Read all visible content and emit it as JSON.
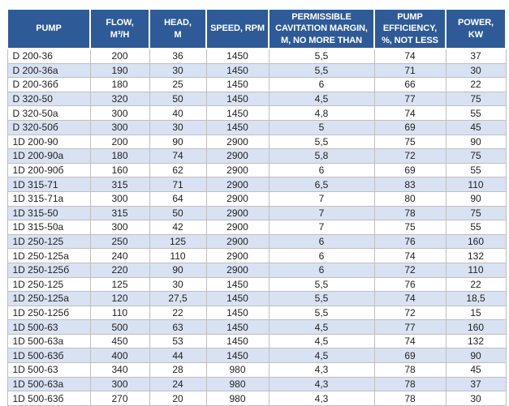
{
  "colors": {
    "header_bg": "#2E5B97",
    "header_text": "#FFFFFF",
    "row_alt_bg": "#D9E2F3",
    "grid_line": "#BFBFBF",
    "body_text": "#1F1F1F"
  },
  "chart_data": {
    "type": "table",
    "title": "",
    "columns": [
      "PUMP",
      "FLOW,\nM³/H",
      "HEAD,\nM",
      "SPEED, RPM",
      "PERMISSIBLE\nCAVITATION MARGIN,\nM, NO MORE THAN",
      "PUMP\nEFFICIENCY,\n%, NOT LESS",
      "POWER,\nKW"
    ],
    "rows": [
      [
        "D 200-36",
        "200",
        "36",
        "1450",
        "5,5",
        "74",
        "37"
      ],
      [
        "D 200-36a",
        "190",
        "30",
        "1450",
        "5,5",
        "71",
        "30"
      ],
      [
        "D 200-36б",
        "180",
        "25",
        "1450",
        "6",
        "66",
        "22"
      ],
      [
        "D 320-50",
        "320",
        "50",
        "1450",
        "4,5",
        "77",
        "75"
      ],
      [
        "D 320-50a",
        "300",
        "40",
        "1450",
        "4,8",
        "74",
        "55"
      ],
      [
        "D 320-50б",
        "300",
        "30",
        "1450",
        "5",
        "69",
        "45"
      ],
      [
        "1D 200-90",
        "200",
        "90",
        "2900",
        "5,5",
        "75",
        "90"
      ],
      [
        "1D 200-90a",
        "180",
        "74",
        "2900",
        "5,8",
        "72",
        "75"
      ],
      [
        "1D 200-90б",
        "160",
        "62",
        "2900",
        "6",
        "69",
        "55"
      ],
      [
        "1D 315-71",
        "315",
        "71",
        "2900",
        "6,5",
        "83",
        "110"
      ],
      [
        "1D 315-71a",
        "300",
        "64",
        "2900",
        "7",
        "80",
        "90"
      ],
      [
        "1D 315-50",
        "315",
        "50",
        "2900",
        "7",
        "78",
        "75"
      ],
      [
        "1D 315-50a",
        "300",
        "42",
        "2900",
        "7",
        "75",
        "55"
      ],
      [
        "1D 250-125",
        "250",
        "125",
        "2900",
        "6",
        "76",
        "160"
      ],
      [
        "1D 250-125a",
        "240",
        "110",
        "2900",
        "6",
        "74",
        "132"
      ],
      [
        "1D 250-125б",
        "220",
        "90",
        "2900",
        "6",
        "72",
        "110"
      ],
      [
        "1D 250-125",
        "125",
        "30",
        "1450",
        "5,5",
        "76",
        "22"
      ],
      [
        "1D 250-125a",
        "120",
        "27,5",
        "1450",
        "5,5",
        "74",
        "18,5"
      ],
      [
        "1D 250-125б",
        "110",
        "22",
        "1450",
        "5,5",
        "72",
        "15"
      ],
      [
        "1D 500-63",
        "500",
        "63",
        "1450",
        "4,5",
        "77",
        "160"
      ],
      [
        "1D 500-63a",
        "450",
        "53",
        "1450",
        "4,5",
        "74",
        "132"
      ],
      [
        "1D 500-63б",
        "400",
        "44",
        "1450",
        "4,5",
        "69",
        "90"
      ],
      [
        "1D 500-63",
        "340",
        "28",
        "980",
        "4,3",
        "78",
        "45"
      ],
      [
        "1D 500-63a",
        "300",
        "24",
        "980",
        "4,3",
        "78",
        "37"
      ],
      [
        "1D 500-63б",
        "270",
        "20",
        "980",
        "4,3",
        "78",
        "30"
      ]
    ]
  }
}
